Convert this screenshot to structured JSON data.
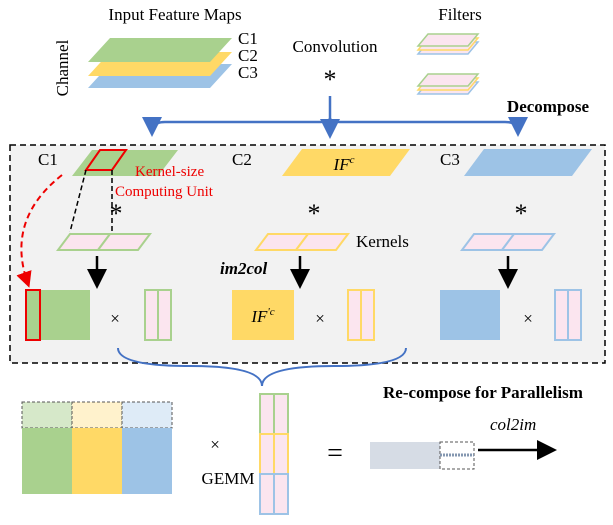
{
  "top": {
    "input_title": "Input Feature Maps",
    "filters_title": "Filters",
    "channel_label": "Channel",
    "channels": [
      "C1",
      "C2",
      "C3"
    ],
    "operation": "Convolution",
    "operator": "*"
  },
  "decompose": {
    "label": "Decompose",
    "channels": [
      "C1",
      "C2",
      "C3"
    ],
    "unit_label": [
      "Kernel-size",
      "Computing Unit"
    ],
    "if_c": {
      "base": "IF",
      "sup": "c"
    },
    "conv_ops": [
      "*",
      "*",
      "*"
    ],
    "kernels_label": "Kernels",
    "im2col": "im2col",
    "if_prime_c": {
      "base": "IF",
      "sup": "'c"
    },
    "times": [
      "×",
      "×",
      "×"
    ]
  },
  "recompose": {
    "label": "Re-compose for Parallelism",
    "times": "×",
    "gemm": "GEMM",
    "equals": "=",
    "col2im": "col2im"
  }
}
